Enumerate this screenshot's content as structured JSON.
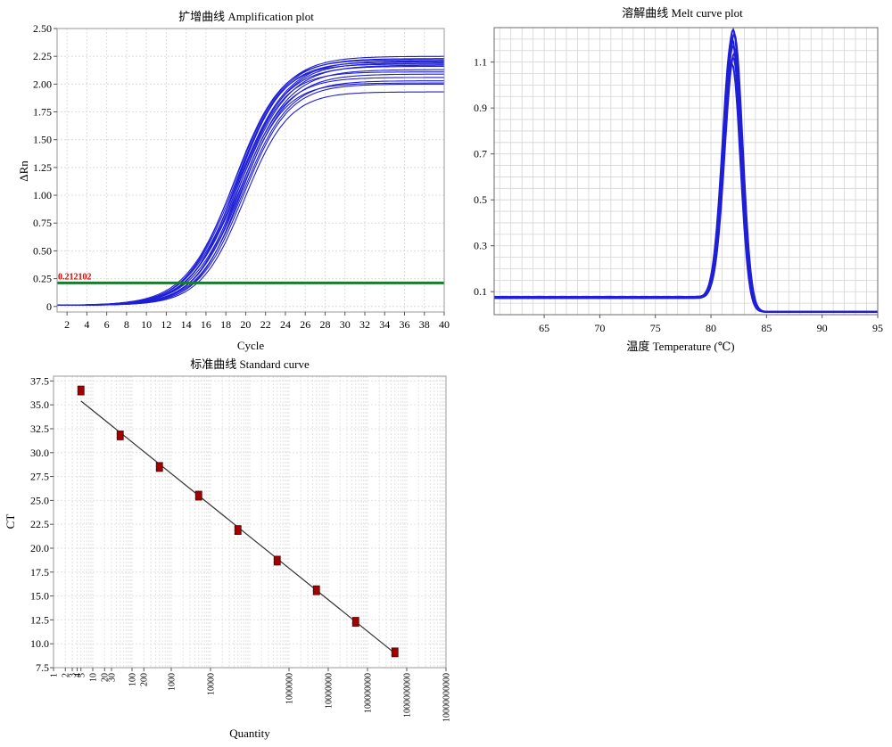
{
  "chart_data": [
    {
      "type": "line",
      "title": "扩增曲线 Amplification plot",
      "xlabel": "Cycle",
      "ylabel": "ΔRn",
      "xlim": [
        1,
        40
      ],
      "ylim": [
        -0.05,
        2.5
      ],
      "x_ticks": [
        "2",
        "4",
        "6",
        "8",
        "10",
        "12",
        "14",
        "16",
        "18",
        "20",
        "22",
        "24",
        "26",
        "28",
        "30",
        "32",
        "34",
        "36",
        "38",
        "40"
      ],
      "y_ticks": [
        "0",
        "0.25",
        "0.50",
        "0.75",
        "1.00",
        "1.25",
        "1.50",
        "1.75",
        "2.00",
        "2.25",
        "2.50"
      ],
      "threshold": {
        "value": 0.212102,
        "label": "0.212102",
        "color": "#1a7a2e"
      },
      "series_color": "#1f1fd6",
      "grid": true,
      "series": [
        {
          "plateau": 2.24,
          "midpoint": 18.9,
          "slope": 0.4
        },
        {
          "plateau": 2.22,
          "midpoint": 19.0,
          "slope": 0.41
        },
        {
          "plateau": 2.21,
          "midpoint": 18.8,
          "slope": 0.42
        },
        {
          "plateau": 2.2,
          "midpoint": 19.2,
          "slope": 0.4
        },
        {
          "plateau": 2.19,
          "midpoint": 19.1,
          "slope": 0.43
        },
        {
          "plateau": 2.18,
          "midpoint": 19.3,
          "slope": 0.41
        },
        {
          "plateau": 2.17,
          "midpoint": 19.0,
          "slope": 0.44
        },
        {
          "plateau": 2.16,
          "midpoint": 19.4,
          "slope": 0.4
        },
        {
          "plateau": 2.15,
          "midpoint": 19.2,
          "slope": 0.42
        },
        {
          "plateau": 2.12,
          "midpoint": 19.5,
          "slope": 0.41
        },
        {
          "plateau": 2.1,
          "midpoint": 19.3,
          "slope": 0.45
        },
        {
          "plateau": 2.08,
          "midpoint": 19.6,
          "slope": 0.42
        },
        {
          "plateau": 2.05,
          "midpoint": 19.4,
          "slope": 0.44
        },
        {
          "plateau": 2.02,
          "midpoint": 19.7,
          "slope": 0.43
        },
        {
          "plateau": 2.0,
          "midpoint": 19.5,
          "slope": 0.46
        },
        {
          "plateau": 1.99,
          "midpoint": 19.8,
          "slope": 0.44
        },
        {
          "plateau": 1.92,
          "midpoint": 19.9,
          "slope": 0.45
        }
      ]
    },
    {
      "type": "line",
      "title": "溶解曲线 Melt curve plot",
      "xlabel": "温度 Temperature (℃)",
      "ylabel": "",
      "xlim": [
        60.5,
        95
      ],
      "ylim": [
        0,
        1.25
      ],
      "x_ticks": [
        "65",
        "70",
        "75",
        "80",
        "85",
        "90",
        "95"
      ],
      "y_ticks": [
        "0.1",
        "0.3",
        "0.5",
        "0.7",
        "0.9",
        "1.1"
      ],
      "series_color": "#1f1fd6",
      "grid": true,
      "baseline": 0.075,
      "series": [
        {
          "peak_temp": 82.0,
          "peak_height": 1.24
        },
        {
          "peak_temp": 82.1,
          "peak_height": 1.22
        },
        {
          "peak_temp": 81.9,
          "peak_height": 1.2
        },
        {
          "peak_temp": 82.0,
          "peak_height": 1.17
        },
        {
          "peak_temp": 82.1,
          "peak_height": 1.14
        },
        {
          "peak_temp": 82.0,
          "peak_height": 1.12
        },
        {
          "peak_temp": 81.9,
          "peak_height": 1.09
        }
      ]
    },
    {
      "type": "scatter",
      "title": "标准曲线 Standard curve",
      "xlabel": "Quantity",
      "ylabel": "CT",
      "x_scale": "log",
      "xlim": [
        1,
        10000000000
      ],
      "ylim": [
        7.5,
        38
      ],
      "x_ticks": [
        "1",
        "2",
        "3",
        "4",
        "5",
        "10",
        "20",
        "30",
        "100",
        "200",
        "1000",
        "10000",
        "1000000",
        "10000000",
        "100000000",
        "1000000000",
        "10000000000"
      ],
      "y_ticks": [
        "7.5",
        "10.0",
        "12.5",
        "15.0",
        "17.5",
        "20.0",
        "22.5",
        "25.0",
        "27.5",
        "30.0",
        "32.5",
        "35.0",
        "37.5"
      ],
      "grid": true,
      "points": [
        {
          "x": 5,
          "y": 36.5
        },
        {
          "x": 50,
          "y": 31.8
        },
        {
          "x": 500,
          "y": 28.5
        },
        {
          "x": 5000,
          "y": 25.5
        },
        {
          "x": 50000,
          "y": 21.9
        },
        {
          "x": 500000,
          "y": 18.7
        },
        {
          "x": 5000000,
          "y": 15.6
        },
        {
          "x": 50000000,
          "y": 12.3
        },
        {
          "x": 500000000,
          "y": 9.1
        }
      ],
      "fit_line": {
        "x": [
          5,
          500000000
        ],
        "y": [
          35.4,
          9.0
        ]
      },
      "point_color": "#a00000",
      "line_color": "#333333"
    }
  ]
}
